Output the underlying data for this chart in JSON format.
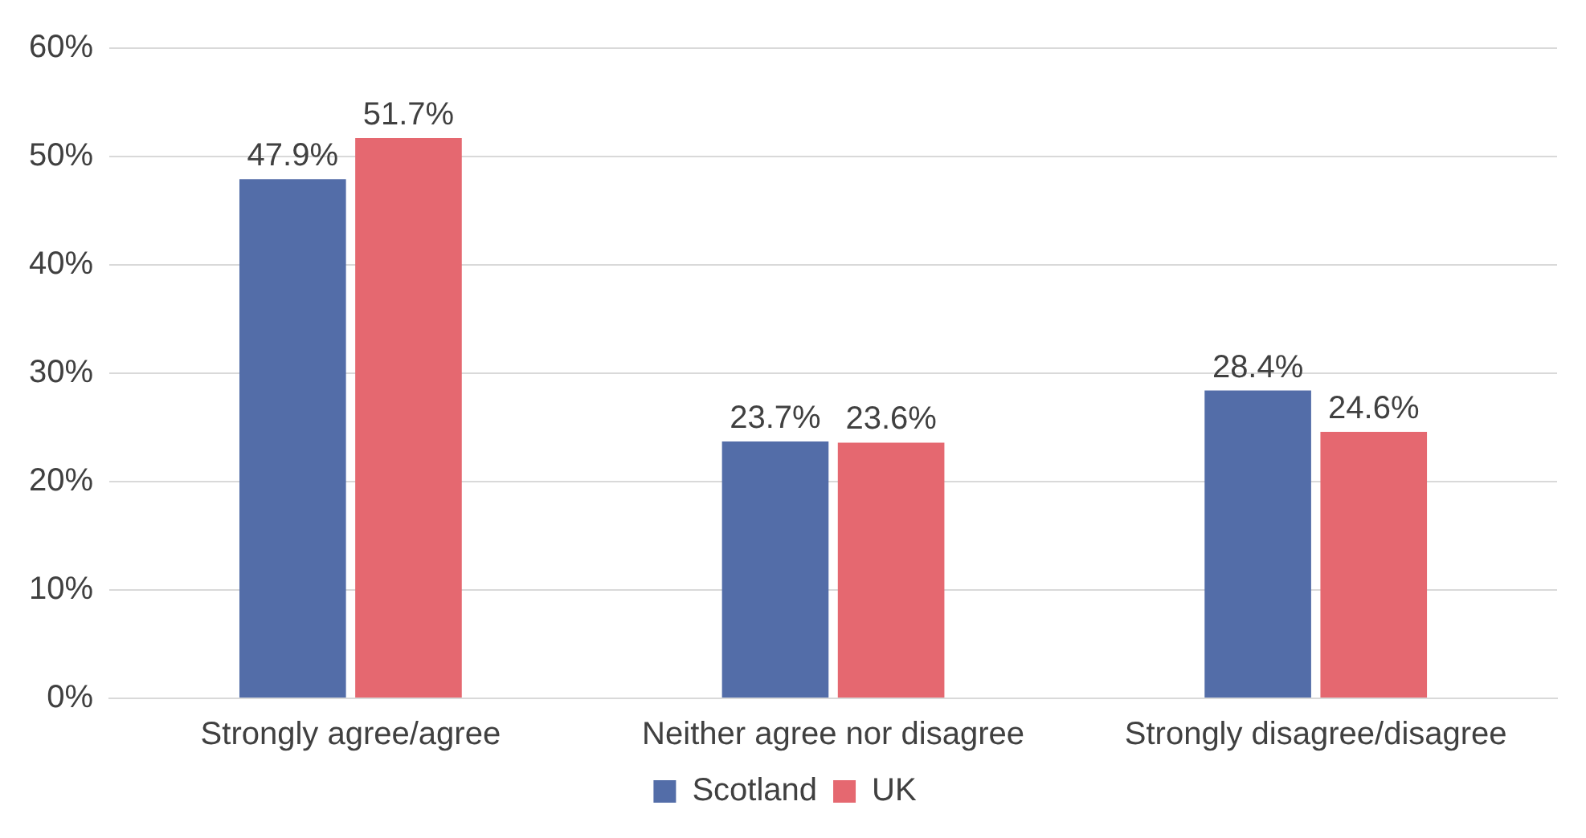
{
  "chart_data": {
    "type": "bar",
    "categories": [
      "Strongly agree/agree",
      "Neither agree nor disagree",
      "Strongly disagree/disagree"
    ],
    "series": [
      {
        "name": "Scotland",
        "color": "#536da8",
        "values": [
          47.9,
          23.7,
          28.4
        ],
        "value_labels": [
          "47.9%",
          "23.7%",
          "28.4%"
        ]
      },
      {
        "name": "UK",
        "color": "#e56870",
        "values": [
          51.7,
          23.6,
          24.6
        ],
        "value_labels": [
          "51.7%",
          "23.6%",
          "24.6%"
        ]
      }
    ],
    "ylim": [
      0,
      60
    ],
    "yticks": [
      {
        "value": 0,
        "label": "0%"
      },
      {
        "value": 10,
        "label": "10%"
      },
      {
        "value": 20,
        "label": "20%"
      },
      {
        "value": 30,
        "label": "30%"
      },
      {
        "value": 40,
        "label": "40%"
      },
      {
        "value": 50,
        "label": "50%"
      },
      {
        "value": 60,
        "label": "60%"
      }
    ],
    "grid": "y",
    "legend": "bottom"
  }
}
